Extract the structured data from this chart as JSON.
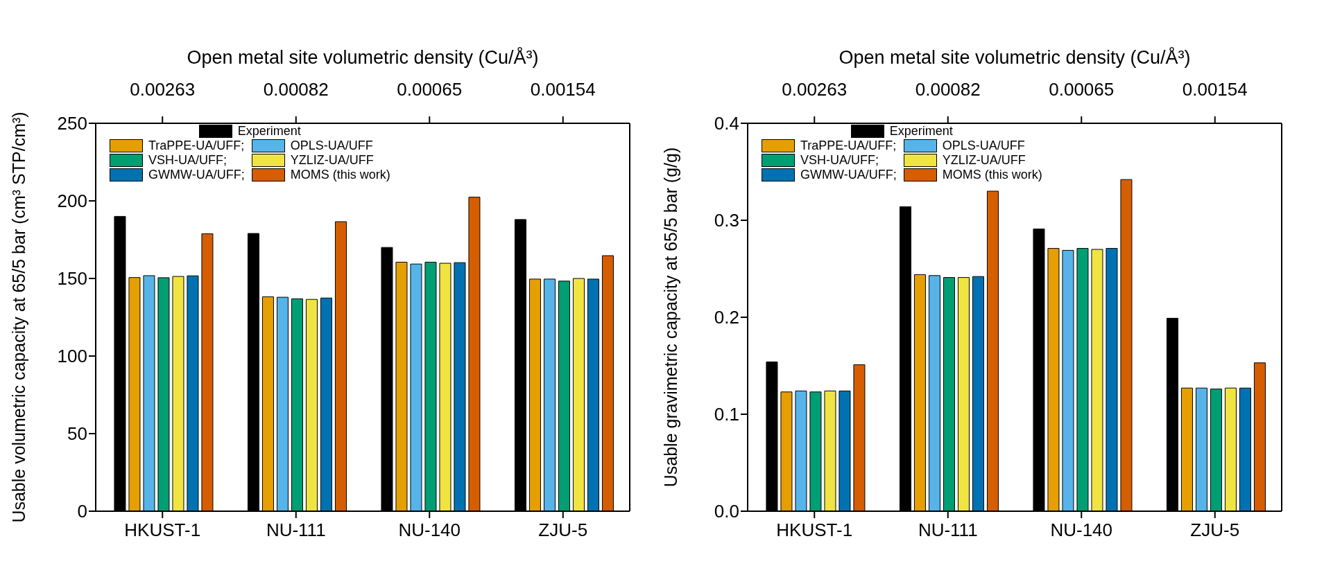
{
  "chart_data": [
    {
      "type": "bar",
      "x2label": "Open metal site volumetric density (Cu/Å³)",
      "ylabel": "Usable volumetric capacity at 65/5 bar (cm³ STP/cm³)",
      "categories": [
        "HKUST-1",
        "NU-111",
        "NU-140",
        "ZJU-5"
      ],
      "annotations": [
        {
          "text": "0.00263",
          "x": "HKUST-1"
        },
        {
          "text": "0.00082",
          "x": "NU-111"
        },
        {
          "text": "0.00065",
          "x": "NU-140"
        },
        {
          "text": "0.00154",
          "x": "ZJU-5"
        }
      ],
      "ylim": [
        0,
        250
      ],
      "yticks": [
        0,
        50,
        100,
        150,
        200,
        250
      ],
      "legend": "top left",
      "series": [
        {
          "name": "Experiment",
          "color": "#000000",
          "values": [
            190,
            179,
            170,
            188
          ]
        },
        {
          "name": "TraPPE-UA/UFF;",
          "color": "#e69f00",
          "values": [
            150.6,
            138.2,
            160.5,
            149.6
          ]
        },
        {
          "name": "OPLS-UA/UFF",
          "color": "#56b4e9",
          "values": [
            151.8,
            137.9,
            159.3,
            149.6
          ]
        },
        {
          "name": "VSH-UA/UFF;",
          "color": "#009e73",
          "values": [
            150.5,
            136.9,
            160.5,
            148.3
          ]
        },
        {
          "name": "YZLIZ-UA/UFF",
          "color": "#f0e442",
          "values": [
            151.3,
            136.5,
            159.8,
            150
          ]
        },
        {
          "name": "GWMW-UA/UFF;",
          "color": "#0072b2",
          "values": [
            151.7,
            137.4,
            160.2,
            149.6
          ]
        },
        {
          "name": "MOMS (this work)",
          "color": "#d55e00",
          "values": [
            178.8,
            186.6,
            202.4,
            164.7
          ]
        }
      ]
    },
    {
      "type": "bar",
      "x2label": "Open metal site volumetric density (Cu/Å³)",
      "ylabel": "Usable gravimetric capacity at 65/5 bar (g/g)",
      "categories": [
        "HKUST-1",
        "NU-111",
        "NU-140",
        "ZJU-5"
      ],
      "annotations": [
        {
          "text": "0.00263",
          "x": "HKUST-1"
        },
        {
          "text": "0.00082",
          "x": "NU-111"
        },
        {
          "text": "0.00065",
          "x": "NU-140"
        },
        {
          "text": "0.00154",
          "x": "ZJU-5"
        }
      ],
      "ylim": [
        0,
        0.4
      ],
      "yticks": [
        {
          "value": 0,
          "label": "0.0"
        },
        0.1,
        0.2,
        0.3,
        0.4
      ],
      "legend": "top left",
      "series": [
        {
          "name": "Experiment",
          "color": "#000000",
          "values": [
            0.154,
            0.314,
            0.291,
            0.199
          ]
        },
        {
          "name": "TraPPE-UA/UFF;",
          "color": "#e69f00",
          "values": [
            0.123,
            0.244,
            0.271,
            0.127
          ]
        },
        {
          "name": "OPLS-UA/UFF",
          "color": "#56b4e9",
          "values": [
            0.124,
            0.243,
            0.269,
            0.127
          ]
        },
        {
          "name": "VSH-UA/UFF;",
          "color": "#009e73",
          "values": [
            0.123,
            0.241,
            0.271,
            0.126
          ]
        },
        {
          "name": "YZLIZ-UA/UFF",
          "color": "#f0e442",
          "values": [
            0.124,
            0.241,
            0.27,
            0.127
          ]
        },
        {
          "name": "GWMW-UA/UFF;",
          "color": "#0072b2",
          "values": [
            0.124,
            0.242,
            0.271,
            0.127
          ]
        },
        {
          "name": "MOMS (this work)",
          "color": "#d55e00",
          "values": [
            0.151,
            0.33,
            0.342,
            0.153
          ]
        }
      ]
    }
  ]
}
